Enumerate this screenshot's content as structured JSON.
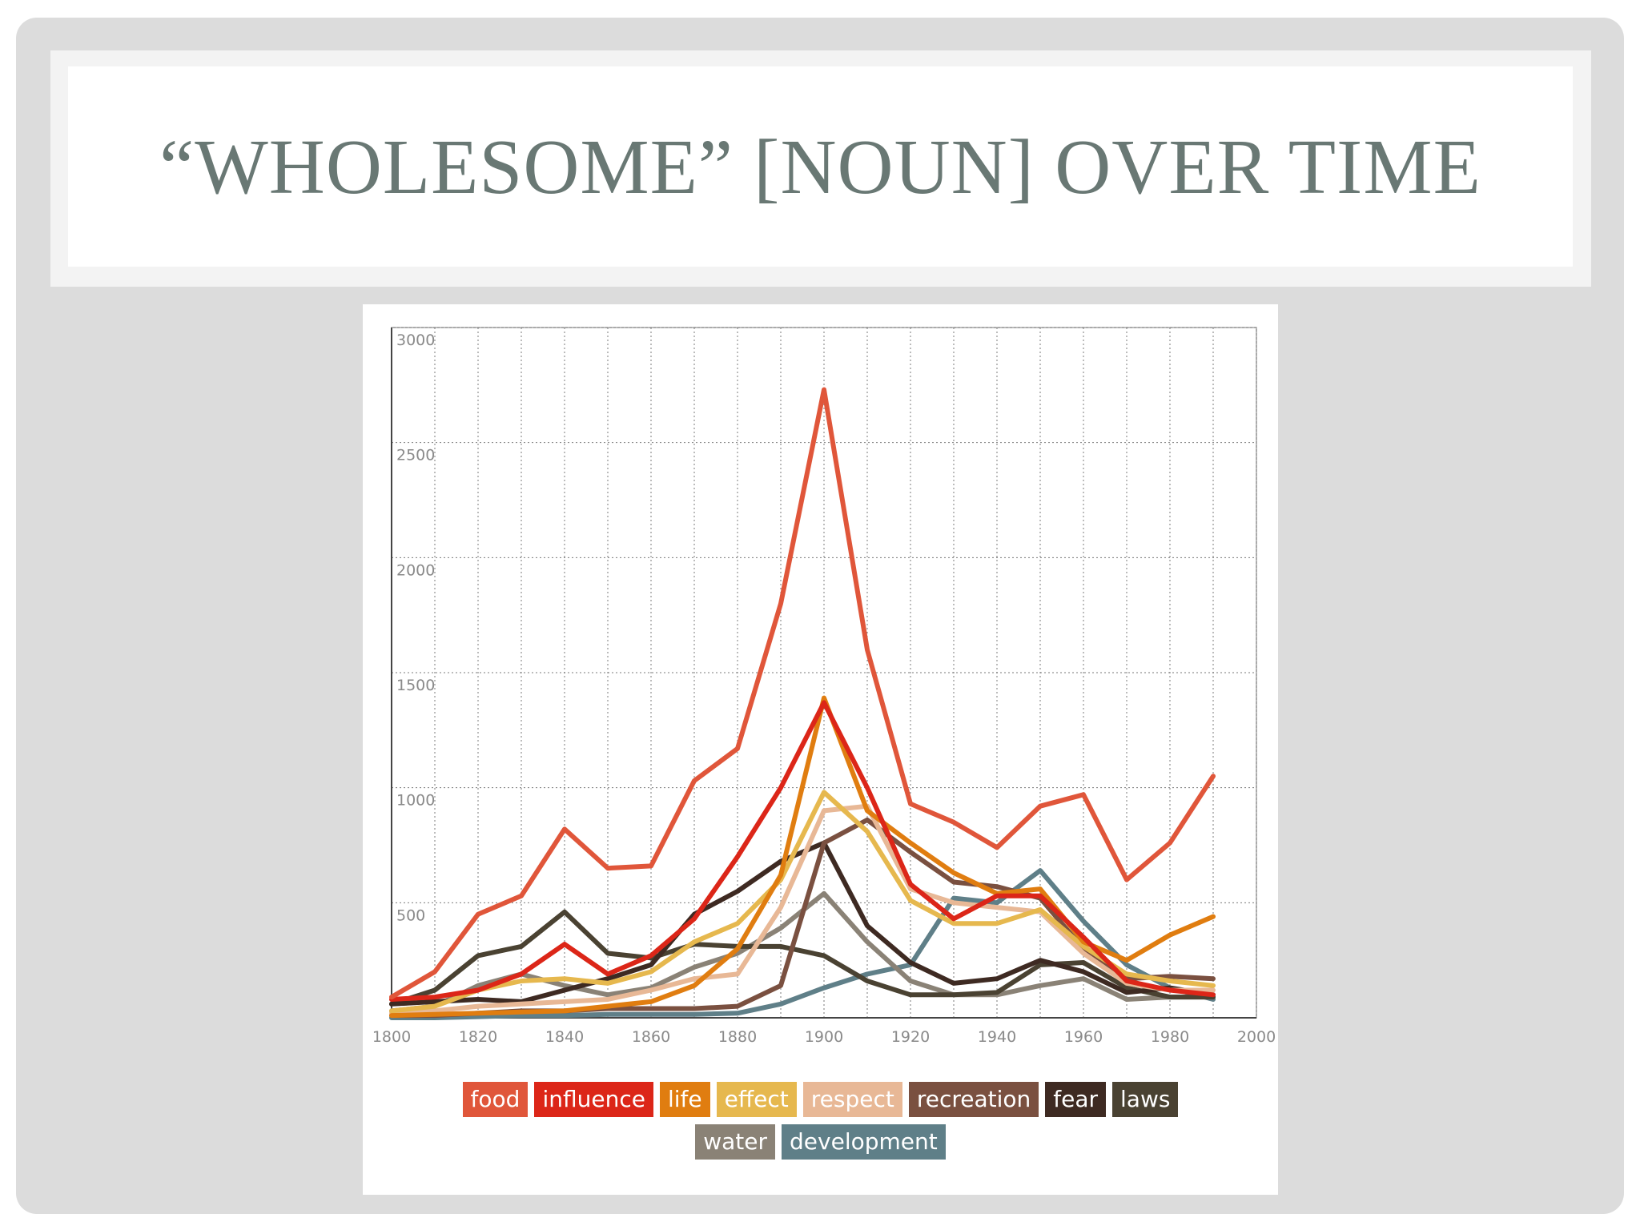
{
  "slide": {
    "title": "“WHOLESOME” [NOUN] OVER TIME",
    "background": "#dcdcdc",
    "title_color": "#697874"
  },
  "chart_data": {
    "type": "line",
    "title": "",
    "xlabel": "",
    "ylabel": "",
    "x": [
      1800,
      1810,
      1820,
      1830,
      1840,
      1850,
      1860,
      1870,
      1880,
      1890,
      1900,
      1910,
      1920,
      1930,
      1940,
      1950,
      1960,
      1970,
      1980,
      1990,
      2000
    ],
    "xlim": [
      1800,
      2000
    ],
    "ylim": [
      0,
      3000
    ],
    "x_ticks": [
      1800,
      1820,
      1840,
      1860,
      1880,
      1900,
      1920,
      1940,
      1960,
      1980,
      2000
    ],
    "y_ticks": [
      500,
      1000,
      1500,
      2000,
      2500,
      3000
    ],
    "y_tick_labels": [
      "500",
      "1000",
      "1500",
      "2000",
      "2500",
      "3000"
    ],
    "grid": true,
    "legend": "bottom",
    "series": [
      {
        "name": "food",
        "color": "#e0563a",
        "values": [
          90,
          200,
          450,
          530,
          820,
          650,
          660,
          1030,
          1170,
          1800,
          2730,
          1600,
          930,
          850,
          740,
          920,
          970,
          600,
          760,
          1050,
          null
        ]
      },
      {
        "name": "influence",
        "color": "#dc2618",
        "values": [
          80,
          90,
          120,
          190,
          320,
          190,
          270,
          430,
          700,
          1000,
          1370,
          1000,
          580,
          430,
          530,
          530,
          350,
          160,
          120,
          100,
          null
        ]
      },
      {
        "name": "life",
        "color": "#e07d10",
        "values": [
          10,
          15,
          20,
          25,
          30,
          50,
          70,
          140,
          300,
          620,
          1390,
          900,
          760,
          630,
          540,
          560,
          330,
          250,
          360,
          440,
          null
        ]
      },
      {
        "name": "effect",
        "color": "#e6b84e",
        "values": [
          30,
          50,
          120,
          160,
          170,
          150,
          200,
          330,
          410,
          600,
          980,
          810,
          510,
          410,
          410,
          470,
          310,
          190,
          160,
          140,
          null
        ]
      },
      {
        "name": "respect",
        "color": "#e8b896",
        "values": [
          20,
          30,
          50,
          60,
          70,
          80,
          120,
          170,
          190,
          480,
          900,
          920,
          560,
          500,
          480,
          460,
          280,
          150,
          120,
          120,
          null
        ]
      },
      {
        "name": "recreation",
        "color": "#7a5040",
        "values": [
          10,
          10,
          20,
          30,
          30,
          40,
          40,
          40,
          50,
          140,
          760,
          860,
          720,
          590,
          570,
          520,
          300,
          170,
          180,
          170,
          null
        ]
      },
      {
        "name": "fear",
        "color": "#3e2a22",
        "values": [
          60,
          70,
          80,
          70,
          120,
          170,
          230,
          450,
          550,
          680,
          760,
          400,
          240,
          150,
          170,
          250,
          200,
          110,
          130,
          100,
          null
        ]
      },
      {
        "name": "laws",
        "color": "#4a4232",
        "values": [
          60,
          120,
          270,
          310,
          460,
          280,
          260,
          320,
          310,
          310,
          270,
          160,
          100,
          100,
          110,
          230,
          240,
          130,
          90,
          90,
          null
        ]
      },
      {
        "name": "water",
        "color": "#8a8276",
        "values": [
          30,
          50,
          140,
          190,
          140,
          100,
          130,
          220,
          280,
          390,
          540,
          330,
          160,
          100,
          100,
          140,
          170,
          80,
          90,
          90,
          null
        ]
      },
      {
        "name": "development",
        "color": "#5f7f88",
        "values": [
          0,
          0,
          5,
          10,
          10,
          15,
          15,
          15,
          20,
          60,
          130,
          190,
          230,
          520,
          500,
          640,
          420,
          230,
          130,
          80,
          null
        ]
      }
    ]
  }
}
